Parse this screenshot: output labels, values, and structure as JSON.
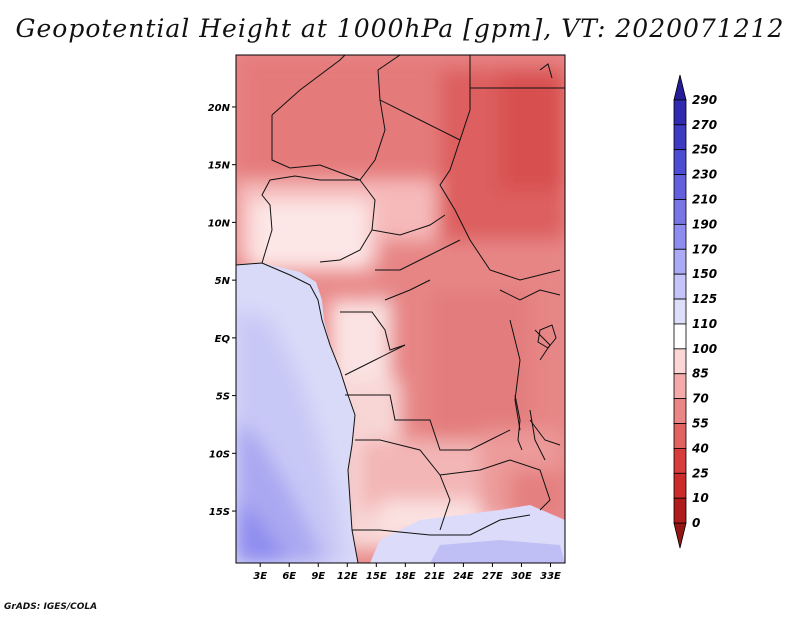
{
  "title": "Geopotential Height at 1000hPa [gpm], VT: 2020071212",
  "footer": "GrADS: IGES/COLA",
  "map": {
    "lat_labels": [
      "20N",
      "15N",
      "10N",
      "5N",
      "EQ",
      "5S",
      "10S",
      "15S"
    ],
    "lon_labels": [
      "3E",
      "6E",
      "9E",
      "12E",
      "15E",
      "18E",
      "21E",
      "24E",
      "27E",
      "30E",
      "33E"
    ],
    "lat_range": [
      -19.5,
      24.5
    ],
    "lon_range": [
      0.5,
      34.5
    ]
  },
  "colorbar": {
    "levels": [
      "290",
      "270",
      "250",
      "230",
      "210",
      "190",
      "170",
      "150",
      "125",
      "110",
      "100",
      "85",
      "70",
      "55",
      "40",
      "25",
      "10",
      "0"
    ],
    "colors": [
      "#241c9a",
      "#2f2ab0",
      "#3d3bc4",
      "#4c4cd4",
      "#6260df",
      "#7876e6",
      "#8f8def",
      "#aaaaf5",
      "#c4c4f8",
      "#dedefb",
      "#ffffff",
      "#fcd6d6",
      "#f4aaaa",
      "#ea8686",
      "#e26161",
      "#d83d3d",
      "#cc2b2b",
      "#b01c1c",
      "#951414"
    ]
  }
}
